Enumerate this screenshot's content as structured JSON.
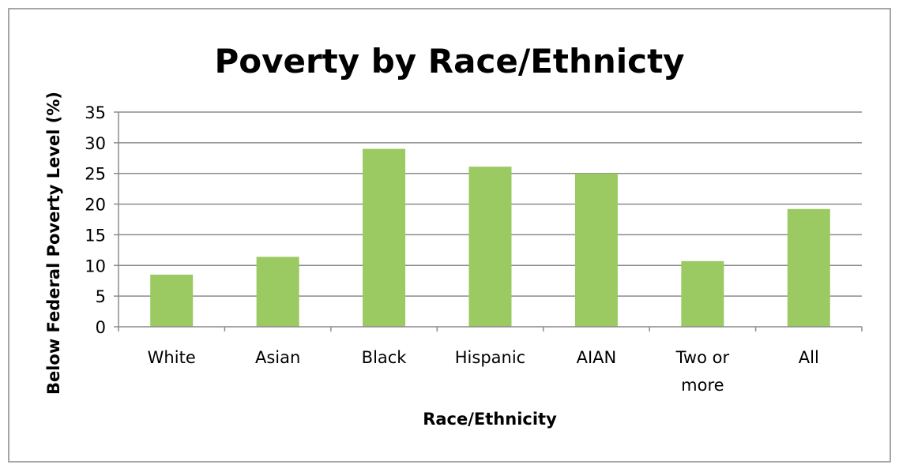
{
  "chart_data": {
    "type": "bar",
    "title": "Poverty by Race/Ethnicty",
    "xlabel": "Race/Ethnicity",
    "ylabel": "Below Federal Poverty Level (%)",
    "categories": [
      "White",
      "Asian",
      "Black",
      "Hispanic",
      "AIAN",
      "Two or more",
      "All"
    ],
    "category_lines": [
      [
        "White"
      ],
      [
        "Asian"
      ],
      [
        "Black"
      ],
      [
        "Hispanic"
      ],
      [
        "AIAN"
      ],
      [
        "Two or",
        "more"
      ],
      [
        "All"
      ]
    ],
    "values": [
      8.5,
      11.4,
      29.0,
      26.1,
      25.0,
      10.7,
      19.2
    ],
    "ylim": [
      0,
      35
    ],
    "yticks": [
      0,
      5,
      10,
      15,
      20,
      25,
      30,
      35
    ],
    "grid": true,
    "legend": "none",
    "bar_color": "#9bc962",
    "grid_color": "#8c8c8c"
  }
}
